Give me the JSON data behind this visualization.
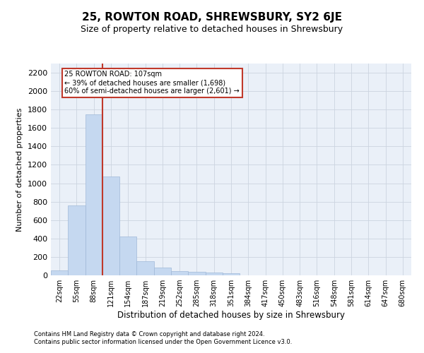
{
  "title": "25, ROWTON ROAD, SHREWSBURY, SY2 6JE",
  "subtitle": "Size of property relative to detached houses in Shrewsbury",
  "xlabel": "Distribution of detached houses by size in Shrewsbury",
  "ylabel": "Number of detached properties",
  "footer_line1": "Contains HM Land Registry data © Crown copyright and database right 2024.",
  "footer_line2": "Contains public sector information licensed under the Open Government Licence v3.0.",
  "bin_labels": [
    "22sqm",
    "55sqm",
    "88sqm",
    "121sqm",
    "154sqm",
    "187sqm",
    "219sqm",
    "252sqm",
    "285sqm",
    "318sqm",
    "351sqm",
    "384sqm",
    "417sqm",
    "450sqm",
    "483sqm",
    "516sqm",
    "548sqm",
    "581sqm",
    "614sqm",
    "647sqm",
    "680sqm"
  ],
  "bar_values": [
    50,
    760,
    1750,
    1070,
    420,
    155,
    85,
    48,
    38,
    30,
    20,
    0,
    0,
    0,
    0,
    0,
    0,
    0,
    0,
    0,
    0
  ],
  "bar_color": "#c5d8f0",
  "bar_edge_color": "#a0b8d8",
  "property_line_x": 2.5,
  "annotation_text_line1": "25 ROWTON ROAD: 107sqm",
  "annotation_text_line2": "← 39% of detached houses are smaller (1,698)",
  "annotation_text_line3": "60% of semi-detached houses are larger (2,601) →",
  "annotation_box_color": "#c0392b",
  "vline_color": "#c0392b",
  "ylim": [
    0,
    2300
  ],
  "yticks": [
    0,
    200,
    400,
    600,
    800,
    1000,
    1200,
    1400,
    1600,
    1800,
    2000,
    2200
  ],
  "background_color": "#ffffff",
  "grid_color": "#ccd4e0",
  "title_fontsize": 11,
  "subtitle_fontsize": 9
}
